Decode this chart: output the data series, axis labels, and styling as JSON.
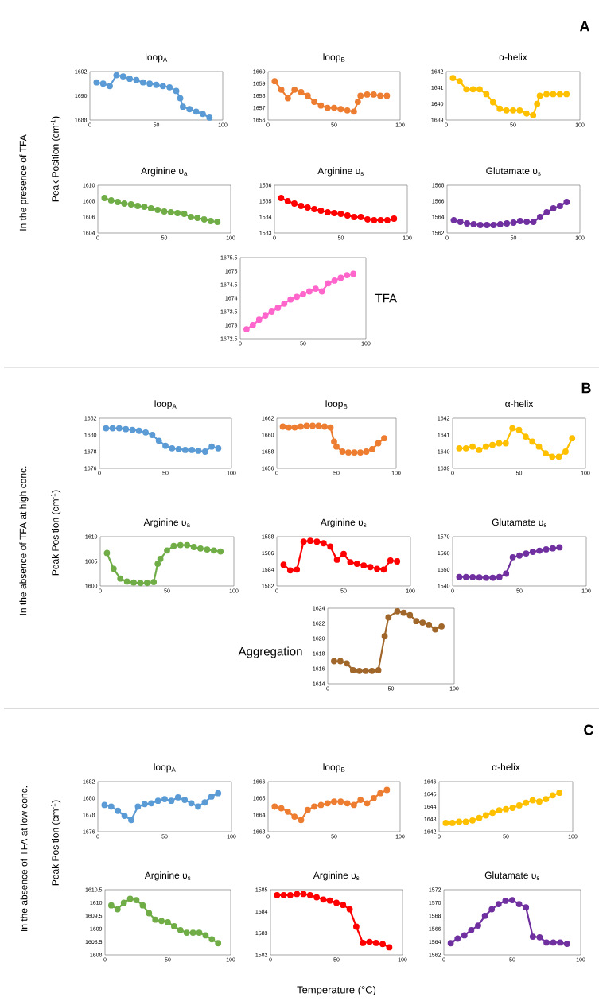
{
  "chart_data": [
    {
      "type": "line",
      "title": "loop$_{A}$",
      "ylabel": "Peak Position (cm$^{-1}$)",
      "annotations": [
        "In the presence of TFA",
        "A"
      ],
      "color": "#5b9bd5",
      "marker": "circle",
      "xlim": [
        0,
        100
      ],
      "xticks": [
        0,
        50,
        100
      ],
      "ylim": [
        1688,
        1692
      ],
      "yticks": [
        1688,
        1690,
        1692
      ],
      "x": [
        5,
        10,
        15,
        20,
        25,
        30,
        35,
        40,
        45,
        50,
        55,
        60,
        65,
        68,
        70,
        75,
        80,
        85,
        90
      ],
      "values": [
        1691.1,
        1691.0,
        1690.8,
        1691.7,
        1691.6,
        1691.4,
        1691.3,
        1691.1,
        1691.0,
        1690.9,
        1690.8,
        1690.7,
        1690.4,
        1689.8,
        1689.1,
        1688.9,
        1688.7,
        1688.5,
        1688.2
      ]
    },
    {
      "type": "line",
      "title": "loop$_{B}$",
      "color": "#ed7d31",
      "marker": "circle",
      "xlim": [
        0,
        100
      ],
      "xticks": [
        0,
        50,
        100
      ],
      "ylim": [
        1656,
        1660
      ],
      "yticks": [
        1656,
        1657,
        1658,
        1659,
        1660
      ],
      "x": [
        5,
        10,
        15,
        20,
        25,
        30,
        35,
        40,
        45,
        50,
        55,
        60,
        65,
        68,
        70,
        75,
        80,
        85,
        90
      ],
      "values": [
        1659.2,
        1658.5,
        1657.8,
        1658.5,
        1658.3,
        1658.0,
        1657.5,
        1657.2,
        1657.0,
        1657.0,
        1656.9,
        1656.8,
        1656.7,
        1657.5,
        1658.0,
        1658.1,
        1658.1,
        1658.0,
        1658.0
      ]
    },
    {
      "type": "line",
      "title": "α-helix",
      "color": "#ffc000",
      "marker": "circle",
      "xlim": [
        0,
        100
      ],
      "xticks": [
        0,
        50,
        100
      ],
      "ylim": [
        1639,
        1642
      ],
      "yticks": [
        1639,
        1640,
        1641,
        1642
      ],
      "x": [
        5,
        10,
        15,
        20,
        25,
        30,
        35,
        40,
        45,
        50,
        55,
        60,
        65,
        68,
        70,
        75,
        80,
        85,
        90
      ],
      "values": [
        1641.6,
        1641.4,
        1640.9,
        1640.9,
        1640.9,
        1640.6,
        1640.1,
        1639.7,
        1639.6,
        1639.6,
        1639.6,
        1639.4,
        1639.3,
        1640.0,
        1640.5,
        1640.6,
        1640.6,
        1640.6,
        1640.6
      ]
    },
    {
      "type": "line",
      "title": "Arginine υ$_{a}$",
      "color": "#70ad47",
      "marker": "circle",
      "xlim": [
        0,
        100
      ],
      "xticks": [
        0,
        50,
        100
      ],
      "ylim": [
        1604,
        1610
      ],
      "yticks": [
        1604,
        1606,
        1608,
        1610
      ],
      "x": [
        5,
        10,
        15,
        20,
        25,
        30,
        35,
        40,
        45,
        50,
        55,
        60,
        65,
        70,
        75,
        80,
        85,
        90
      ],
      "values": [
        1608.4,
        1608.1,
        1607.9,
        1607.7,
        1607.6,
        1607.4,
        1607.3,
        1607.1,
        1606.9,
        1606.7,
        1606.6,
        1606.5,
        1606.4,
        1606.0,
        1605.9,
        1605.7,
        1605.5,
        1605.4
      ]
    },
    {
      "type": "line",
      "title": "Arginine υ$_{s}$",
      "color": "#ff0000",
      "marker": "circle",
      "xlim": [
        0,
        100
      ],
      "xticks": [
        0,
        50,
        100
      ],
      "ylim": [
        1583,
        1586
      ],
      "yticks": [
        1583,
        1584,
        1585,
        1586
      ],
      "x": [
        5,
        10,
        15,
        20,
        25,
        30,
        35,
        40,
        45,
        50,
        55,
        60,
        65,
        70,
        75,
        80,
        85,
        90
      ],
      "values": [
        1585.2,
        1585.0,
        1584.85,
        1584.7,
        1584.6,
        1584.5,
        1584.4,
        1584.3,
        1584.25,
        1584.2,
        1584.1,
        1584.0,
        1584.0,
        1583.85,
        1583.8,
        1583.8,
        1583.8,
        1583.9
      ]
    },
    {
      "type": "line",
      "title": "Glutamate υ$_{s}$",
      "color": "#7030a0",
      "marker": "circle",
      "xlim": [
        0,
        100
      ],
      "xticks": [
        0,
        50,
        100
      ],
      "ylim": [
        1562,
        1568
      ],
      "yticks": [
        1562,
        1564,
        1566,
        1568
      ],
      "x": [
        5,
        10,
        15,
        20,
        25,
        30,
        35,
        40,
        45,
        50,
        55,
        60,
        65,
        70,
        75,
        80,
        85,
        90
      ],
      "values": [
        1563.6,
        1563.4,
        1563.2,
        1563.1,
        1563.0,
        1563.0,
        1563.0,
        1563.1,
        1563.2,
        1563.3,
        1563.5,
        1563.4,
        1563.4,
        1564.0,
        1564.6,
        1565.1,
        1565.4,
        1565.9
      ]
    },
    {
      "type": "line",
      "title": "TFA",
      "color": "#ff66cc",
      "marker": "circle",
      "xlim": [
        0,
        100
      ],
      "xticks": [
        0,
        50,
        100
      ],
      "ylim": [
        1672.5,
        1675.5
      ],
      "yticks": [
        1672.5,
        1673,
        1673.5,
        1674,
        1674.5,
        1675,
        1675.5
      ],
      "x": [
        5,
        10,
        15,
        20,
        25,
        30,
        35,
        40,
        45,
        50,
        55,
        60,
        65,
        70,
        75,
        80,
        85,
        90
      ],
      "values": [
        1672.85,
        1673.0,
        1673.2,
        1673.35,
        1673.5,
        1673.65,
        1673.8,
        1673.95,
        1674.05,
        1674.15,
        1674.25,
        1674.35,
        1674.25,
        1674.55,
        1674.65,
        1674.75,
        1674.85,
        1674.9
      ]
    },
    {
      "type": "line",
      "title": "loop$_{A}$",
      "ylabel": "Peak Position (cm$^{-1}$)",
      "annotations": [
        "In the absence of TFA at high conc.",
        "B"
      ],
      "color": "#5b9bd5",
      "marker": "circle",
      "xlim": [
        0,
        100
      ],
      "xticks": [
        0,
        50,
        100
      ],
      "ylim": [
        1676,
        1682
      ],
      "yticks": [
        1676,
        1678,
        1680,
        1682
      ],
      "x": [
        5,
        10,
        15,
        20,
        25,
        30,
        35,
        40,
        45,
        50,
        55,
        60,
        65,
        70,
        75,
        80,
        85,
        90
      ],
      "values": [
        1680.8,
        1680.8,
        1680.8,
        1680.7,
        1680.6,
        1680.5,
        1680.3,
        1680.0,
        1679.3,
        1678.7,
        1678.4,
        1678.3,
        1678.2,
        1678.2,
        1678.1,
        1678.0,
        1678.6,
        1678.4
      ]
    },
    {
      "type": "line",
      "title": "loop$_{B}$",
      "color": "#ed7d31",
      "marker": "circle",
      "xlim": [
        0,
        100
      ],
      "xticks": [
        0,
        50,
        100
      ],
      "ylim": [
        1656,
        1662
      ],
      "yticks": [
        1656,
        1658,
        1660,
        1662
      ],
      "x": [
        5,
        10,
        15,
        20,
        25,
        30,
        35,
        40,
        45,
        48,
        50,
        55,
        60,
        65,
        70,
        75,
        80,
        85,
        90
      ],
      "values": [
        1661.0,
        1660.9,
        1660.9,
        1661.0,
        1661.1,
        1661.1,
        1661.1,
        1661.0,
        1660.9,
        1659.2,
        1658.6,
        1658.0,
        1657.9,
        1657.9,
        1657.9,
        1658.0,
        1658.3,
        1659.0,
        1659.6
      ]
    },
    {
      "type": "line",
      "title": "α-helix",
      "color": "#ffc000",
      "marker": "circle",
      "xlim": [
        0,
        100
      ],
      "xticks": [
        0,
        50,
        100
      ],
      "ylim": [
        1639,
        1642
      ],
      "yticks": [
        1639,
        1640,
        1641,
        1642
      ],
      "x": [
        5,
        10,
        15,
        20,
        25,
        30,
        35,
        40,
        45,
        50,
        55,
        60,
        65,
        70,
        75,
        80,
        85,
        90
      ],
      "values": [
        1640.2,
        1640.2,
        1640.3,
        1640.1,
        1640.3,
        1640.4,
        1640.5,
        1640.5,
        1641.4,
        1641.3,
        1640.9,
        1640.6,
        1640.3,
        1639.9,
        1639.7,
        1639.7,
        1640.0,
        1640.8
      ]
    },
    {
      "type": "line",
      "title": "Arginine υ$_{a}$",
      "color": "#70ad47",
      "marker": "circle",
      "xlim": [
        0,
        100
      ],
      "xticks": [
        0,
        50,
        100
      ],
      "ylim": [
        1600,
        1610
      ],
      "yticks": [
        1600,
        1605,
        1610
      ],
      "x": [
        5,
        10,
        15,
        20,
        25,
        30,
        35,
        40,
        43,
        45,
        50,
        55,
        60,
        65,
        70,
        75,
        80,
        85,
        90
      ],
      "values": [
        1606.7,
        1603.5,
        1601.5,
        1600.9,
        1600.7,
        1600.6,
        1600.6,
        1600.8,
        1604.5,
        1605.5,
        1607.2,
        1608.1,
        1608.3,
        1608.3,
        1607.9,
        1607.6,
        1607.4,
        1607.2,
        1607.0
      ]
    },
    {
      "type": "line",
      "title": "Arginine υ$_{s}$",
      "color": "#ff0000",
      "marker": "circle",
      "xlim": [
        0,
        100
      ],
      "xticks": [
        0,
        50,
        100
      ],
      "ylim": [
        1582,
        1588
      ],
      "yticks": [
        1582,
        1584,
        1586,
        1588
      ],
      "x": [
        5,
        10,
        15,
        20,
        25,
        30,
        35,
        40,
        45,
        50,
        55,
        60,
        65,
        70,
        75,
        80,
        85,
        90
      ],
      "values": [
        1584.6,
        1583.9,
        1584.0,
        1587.4,
        1587.5,
        1587.4,
        1587.2,
        1586.8,
        1585.2,
        1585.9,
        1584.9,
        1584.7,
        1584.5,
        1584.3,
        1584.1,
        1584.0,
        1585.1,
        1585.0
      ]
    },
    {
      "type": "line",
      "title": "Glutamate υ$_{s}$",
      "color": "#7030a0",
      "marker": "circle",
      "xlim": [
        0,
        100
      ],
      "xticks": [
        0,
        50,
        100
      ],
      "ylim": [
        1540,
        1570
      ],
      "yticks": [
        1540,
        1550,
        1560,
        1570
      ],
      "x": [
        5,
        10,
        15,
        20,
        25,
        30,
        35,
        40,
        45,
        50,
        55,
        60,
        65,
        70,
        75,
        80
      ],
      "values": [
        1545.5,
        1545.5,
        1545.4,
        1545.2,
        1545.0,
        1545.0,
        1545.5,
        1547.5,
        1557.5,
        1558.5,
        1559.8,
        1560.8,
        1561.5,
        1562.3,
        1562.9,
        1563.5
      ]
    },
    {
      "type": "line",
      "title": "Aggregation",
      "color": "#a0662a",
      "marker": "circle",
      "xlim": [
        0,
        100
      ],
      "xticks": [
        0,
        50,
        100
      ],
      "ylim": [
        1614,
        1624
      ],
      "yticks": [
        1614,
        1616,
        1618,
        1620,
        1622,
        1624
      ],
      "x": [
        5,
        10,
        15,
        20,
        25,
        30,
        35,
        40,
        45,
        48,
        55,
        60,
        65,
        70,
        75,
        80,
        85,
        90
      ],
      "values": [
        1617.0,
        1617.0,
        1616.7,
        1615.8,
        1615.7,
        1615.7,
        1615.7,
        1615.8,
        1620.3,
        1622.8,
        1623.6,
        1623.4,
        1623.1,
        1622.3,
        1622.1,
        1621.8,
        1621.2,
        1621.6
      ]
    },
    {
      "type": "line",
      "title": "loop$_{A}$",
      "ylabel": "Peak Position (cm$^{-1}$)",
      "annotations": [
        "In the absence of TFA at low conc.",
        "C"
      ],
      "color": "#5b9bd5",
      "marker": "circle",
      "xlim": [
        0,
        100
      ],
      "xticks": [
        0,
        50,
        100
      ],
      "ylim": [
        1676,
        1682
      ],
      "yticks": [
        1676,
        1678,
        1680,
        1682
      ],
      "x": [
        5,
        10,
        15,
        20,
        25,
        30,
        35,
        40,
        45,
        50,
        55,
        60,
        65,
        70,
        75,
        80,
        85,
        90
      ],
      "values": [
        1679.2,
        1679.0,
        1678.5,
        1677.9,
        1677.4,
        1679.0,
        1679.3,
        1679.4,
        1679.7,
        1679.9,
        1679.7,
        1680.1,
        1679.8,
        1679.4,
        1679.0,
        1679.5,
        1680.2,
        1680.6
      ]
    },
    {
      "type": "line",
      "title": "loop$_{B}$",
      "color": "#ed7d31",
      "marker": "circle",
      "xlim": [
        0,
        100
      ],
      "xticks": [
        0,
        50,
        100
      ],
      "ylim": [
        1663,
        1666
      ],
      "yticks": [
        1663,
        1664,
        1665,
        1666
      ],
      "x": [
        5,
        10,
        15,
        20,
        25,
        30,
        35,
        40,
        45,
        50,
        55,
        60,
        65,
        70,
        75,
        80,
        85,
        90
      ],
      "values": [
        1664.5,
        1664.4,
        1664.2,
        1663.9,
        1663.7,
        1664.3,
        1664.5,
        1664.6,
        1664.7,
        1664.8,
        1664.8,
        1664.7,
        1664.6,
        1664.9,
        1664.7,
        1665.0,
        1665.3,
        1665.5
      ]
    },
    {
      "type": "line",
      "title": "α-helix",
      "color": "#ffc000",
      "marker": "circle",
      "xlim": [
        0,
        100
      ],
      "xticks": [
        0,
        50,
        100
      ],
      "ylim": [
        1642,
        1646
      ],
      "yticks": [
        1642,
        1643,
        1644,
        1645,
        1646
      ],
      "x": [
        5,
        10,
        15,
        20,
        25,
        30,
        35,
        40,
        45,
        50,
        55,
        60,
        65,
        70,
        75,
        80,
        85,
        90
      ],
      "values": [
        1642.7,
        1642.7,
        1642.8,
        1642.8,
        1642.9,
        1643.1,
        1643.3,
        1643.5,
        1643.7,
        1643.8,
        1643.9,
        1644.1,
        1644.3,
        1644.5,
        1644.4,
        1644.6,
        1644.9,
        1645.1
      ]
    },
    {
      "type": "line",
      "title": "Arginine υ$_{s}$",
      "color": "#70ad47",
      "marker": "circle",
      "xlim": [
        0,
        100
      ],
      "xticks": [
        0,
        50,
        100
      ],
      "ylim": [
        1608,
        1610.5
      ],
      "yticks": [
        1608,
        1608.5,
        1609,
        1609.5,
        1610,
        1610.5
      ],
      "x": [
        5,
        10,
        15,
        20,
        25,
        30,
        35,
        40,
        45,
        50,
        55,
        60,
        65,
        70,
        75,
        80,
        85,
        90
      ],
      "values": [
        1609.9,
        1609.75,
        1610.0,
        1610.15,
        1610.1,
        1609.9,
        1609.6,
        1609.35,
        1609.3,
        1609.25,
        1609.1,
        1608.95,
        1608.85,
        1608.85,
        1608.85,
        1608.75,
        1608.6,
        1608.45
      ]
    },
    {
      "type": "line",
      "title": "Arginine υ$_{s}$",
      "xlabel": "Temperature (°C)",
      "color": "#ff0000",
      "marker": "circle",
      "xlim": [
        0,
        100
      ],
      "xticks": [
        0,
        50,
        100
      ],
      "ylim": [
        1582,
        1585
      ],
      "yticks": [
        1582,
        1583,
        1584,
        1585
      ],
      "x": [
        5,
        10,
        15,
        20,
        25,
        30,
        35,
        40,
        45,
        50,
        55,
        60,
        65,
        70,
        75,
        80,
        85,
        90
      ],
      "values": [
        1584.75,
        1584.75,
        1584.75,
        1584.8,
        1584.8,
        1584.75,
        1584.65,
        1584.55,
        1584.5,
        1584.4,
        1584.3,
        1584.1,
        1583.3,
        1582.55,
        1582.6,
        1582.55,
        1582.5,
        1582.35
      ]
    },
    {
      "type": "line",
      "title": "Glutamate υ$_{s}$",
      "color": "#7030a0",
      "marker": "circle",
      "xlim": [
        0,
        100
      ],
      "xticks": [
        0,
        50,
        100
      ],
      "ylim": [
        1562,
        1572
      ],
      "yticks": [
        1562,
        1564,
        1566,
        1568,
        1570,
        1572
      ],
      "x": [
        5,
        10,
        15,
        20,
        25,
        30,
        35,
        40,
        45,
        50,
        55,
        60,
        65,
        70,
        75,
        80,
        85,
        90
      ],
      "values": [
        1563.8,
        1564.5,
        1565.0,
        1565.8,
        1566.5,
        1568.0,
        1569.0,
        1569.8,
        1570.3,
        1570.4,
        1569.8,
        1569.3,
        1564.8,
        1564.7,
        1563.9,
        1563.9,
        1563.9,
        1563.7
      ]
    }
  ]
}
